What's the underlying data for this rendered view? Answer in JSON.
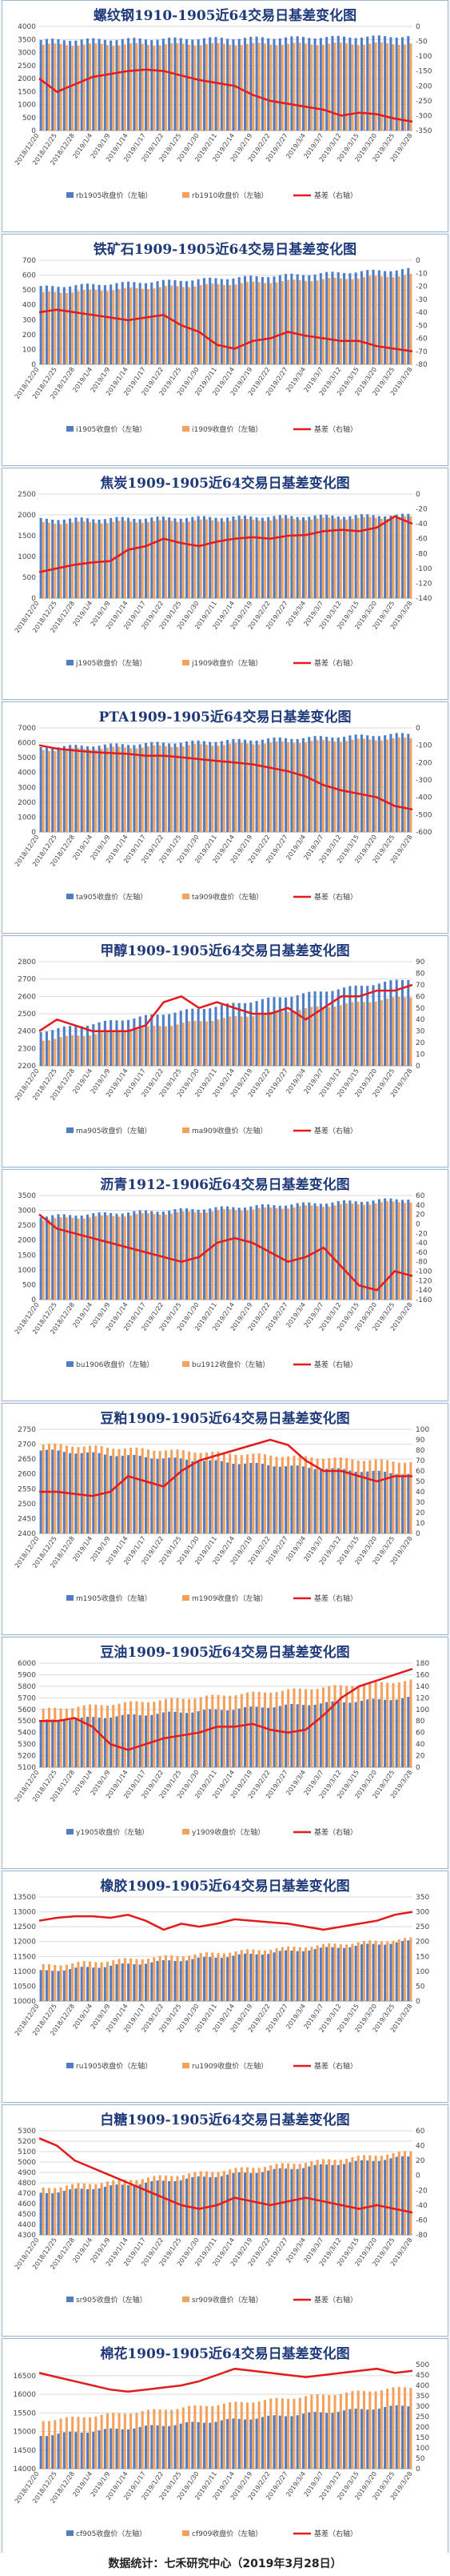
{
  "footer": {
    "text": "数据统计：七禾研究中心（2019年3月28日）"
  },
  "legend": {
    "basis": "基差（右轴）"
  },
  "dates": [
    "2018/12/20",
    "2018/12/25",
    "2018/12/28",
    "2019/1/4",
    "2019/1/9",
    "2019/1/14",
    "2019/1/17",
    "2019/1/22",
    "2019/1/25",
    "2019/1/30",
    "2019/2/11",
    "2019/2/14",
    "2019/2/19",
    "2019/2/22",
    "2019/2/27",
    "2019/3/4",
    "2019/3/7",
    "2019/3/12",
    "2019/3/15",
    "2019/3/20",
    "2019/3/25",
    "2019/3/28"
  ],
  "colors": {
    "bar1": "#4f7ec4",
    "bar2": "#f2a25c",
    "basis": "#e31b1b"
  },
  "chart_data": [
    {
      "type": "bar+line",
      "title": "螺纹钢1910-1905近64交易日基差变化图",
      "series": [
        {
          "name": "rb1905收盘价（左轴）",
          "shape": "flat",
          "start": 3480,
          "end": 3620
        },
        {
          "name": "rb1910收盘价（左轴）",
          "shape": "flat",
          "start": 3300,
          "end": 3340
        },
        {
          "name": "基差（右轴）",
          "values": [
            -175,
            -220,
            -195,
            -170,
            -160,
            -150,
            -145,
            -150,
            -165,
            -180,
            -190,
            -200,
            -230,
            -250,
            -260,
            -270,
            -280,
            -300,
            -290,
            -295,
            -310,
            -320
          ]
        }
      ],
      "ylim_left": [
        0,
        4000
      ],
      "yticks_left": [
        0,
        500,
        1000,
        1500,
        2000,
        2500,
        3000,
        3500,
        4000
      ],
      "ylim_right": [
        -350,
        0
      ],
      "yticks_right": [
        -350,
        -300,
        -250,
        -200,
        -150,
        -100,
        -50,
        0
      ]
    },
    {
      "type": "bar+line",
      "title": "铁矿石1909-1905近64交易日基差变化图",
      "series": [
        {
          "name": "i1905收盘价（左轴）",
          "shape": "rise",
          "start": 520,
          "end": 640
        },
        {
          "name": "i1909收盘价（左轴）",
          "shape": "rise",
          "start": 480,
          "end": 600
        },
        {
          "name": "基差（右轴）",
          "values": [
            -40,
            -38,
            -40,
            -42,
            -44,
            -46,
            -44,
            -42,
            -50,
            -55,
            -65,
            -68,
            -62,
            -60,
            -55,
            -58,
            -60,
            -62,
            -62,
            -66,
            -68,
            -70
          ]
        }
      ],
      "ylim_left": [
        0,
        700
      ],
      "yticks_left": [
        0,
        100,
        200,
        300,
        400,
        500,
        600,
        700
      ],
      "ylim_right": [
        -80,
        0
      ],
      "yticks_right": [
        -80,
        -70,
        -60,
        -50,
        -40,
        -30,
        -20,
        -10,
        0
      ]
    },
    {
      "type": "bar+line",
      "title": "焦炭1909-1905近64交易日基差变化图",
      "series": [
        {
          "name": "j1905收盘价（左轴）",
          "shape": "flat",
          "start": 1900,
          "end": 2000
        },
        {
          "name": "j1909收盘价（左轴）",
          "shape": "flat",
          "start": 1800,
          "end": 1940
        },
        {
          "name": "基差（右轴）",
          "values": [
            -105,
            -100,
            -95,
            -92,
            -90,
            -75,
            -70,
            -60,
            -66,
            -70,
            -64,
            -60,
            -58,
            -60,
            -56,
            -55,
            -50,
            -48,
            -50,
            -45,
            -30,
            -40
          ]
        }
      ],
      "ylim_left": [
        0,
        2500
      ],
      "yticks_left": [
        0,
        500,
        1000,
        1500,
        2000,
        2500
      ],
      "ylim_right": [
        -140,
        0
      ],
      "yticks_right": [
        -140,
        -120,
        -100,
        -80,
        -60,
        -40,
        -20,
        0
      ]
    },
    {
      "type": "bar+line",
      "title": "PTA1909-1905近64交易日基差变化图",
      "series": [
        {
          "name": "ta905收盘价（左轴）",
          "shape": "rise",
          "start": 5700,
          "end": 6600
        },
        {
          "name": "ta909收盘价（左轴）",
          "shape": "rise",
          "start": 5500,
          "end": 6300
        },
        {
          "name": "基差（右轴）",
          "values": [
            -100,
            -120,
            -130,
            -140,
            -145,
            -150,
            -160,
            -160,
            -170,
            -180,
            -190,
            -200,
            -210,
            -230,
            -250,
            -280,
            -330,
            -360,
            -380,
            -400,
            -450,
            -470
          ]
        }
      ],
      "ylim_left": [
        0,
        7000
      ],
      "yticks_left": [
        0,
        1000,
        2000,
        3000,
        4000,
        5000,
        6000,
        7000
      ],
      "ylim_right": [
        -600,
        0
      ],
      "yticks_right": [
        -600,
        -500,
        -400,
        -300,
        -200,
        -100,
        0
      ]
    },
    {
      "type": "bar+line",
      "title": "甲醇1909-1905近64交易日基差变化图",
      "series": [
        {
          "name": "ma905收盘价（左轴）",
          "shape": "rise",
          "start": 2400,
          "end": 2700
        },
        {
          "name": "ma909收盘价（左轴）",
          "shape": "rise",
          "start": 2350,
          "end": 2600
        },
        {
          "name": "基差（右轴）",
          "values": [
            30,
            40,
            35,
            30,
            30,
            30,
            35,
            55,
            60,
            50,
            55,
            50,
            45,
            45,
            50,
            40,
            50,
            60,
            60,
            65,
            65,
            70
          ]
        }
      ],
      "ylim_left": [
        2200,
        2800
      ],
      "yticks_left": [
        2200,
        2300,
        2400,
        2500,
        2600,
        2700,
        2800
      ],
      "ylim_right": [
        0,
        90
      ],
      "yticks_right": [
        0,
        10,
        20,
        30,
        40,
        50,
        60,
        70,
        80,
        90
      ]
    },
    {
      "type": "bar+line",
      "title": "沥青1912-1906近64交易日基差变化图",
      "series": [
        {
          "name": "bu1906收盘价（左轴）",
          "shape": "rise",
          "start": 2800,
          "end": 3400
        },
        {
          "name": "bu1912收盘价（左轴）",
          "shape": "rise",
          "start": 2700,
          "end": 3300
        },
        {
          "name": "基差（右轴）",
          "values": [
            20,
            -10,
            -20,
            -30,
            -40,
            -50,
            -60,
            -70,
            -80,
            -70,
            -40,
            -30,
            -40,
            -60,
            -80,
            -70,
            -50,
            -90,
            -130,
            -140,
            -100,
            -110
          ]
        }
      ],
      "ylim_left": [
        0,
        3500
      ],
      "yticks_left": [
        0,
        500,
        1000,
        1500,
        2000,
        2500,
        3000,
        3500
      ],
      "ylim_right": [
        -160,
        60
      ],
      "yticks_right": [
        -160,
        -140,
        -120,
        -100,
        -80,
        -60,
        -40,
        -20,
        0,
        20,
        40,
        60
      ]
    },
    {
      "type": "bar+line",
      "title": "豆粕1909-1905近64交易日基差变化图",
      "series": [
        {
          "name": "m1905收盘价（左轴）",
          "shape": "fall",
          "start": 2680,
          "end": 2600
        },
        {
          "name": "m1909收盘价（左轴）",
          "shape": "fall",
          "start": 2700,
          "end": 2640
        },
        {
          "name": "基差（右轴）",
          "values": [
            40,
            40,
            38,
            36,
            40,
            55,
            50,
            45,
            60,
            70,
            75,
            80,
            85,
            90,
            85,
            70,
            60,
            60,
            55,
            50,
            55,
            55
          ]
        }
      ],
      "ylim_left": [
        2400,
        2750
      ],
      "yticks_left": [
        2400,
        2450,
        2500,
        2550,
        2600,
        2650,
        2700,
        2750
      ],
      "ylim_right": [
        0,
        100
      ],
      "yticks_right": [
        0,
        10,
        20,
        30,
        40,
        50,
        60,
        70,
        80,
        90,
        100
      ]
    },
    {
      "type": "bar+line",
      "title": "豆油1909-1905近64交易日基差变化图",
      "series": [
        {
          "name": "y1905收盘价（左轴）",
          "shape": "rise",
          "start": 5500,
          "end": 5700
        },
        {
          "name": "y1909收盘价（左轴）",
          "shape": "rise",
          "start": 5600,
          "end": 5850
        },
        {
          "name": "基差（右轴）",
          "values": [
            80,
            80,
            85,
            70,
            40,
            30,
            40,
            50,
            55,
            60,
            70,
            70,
            75,
            65,
            60,
            65,
            90,
            120,
            140,
            150,
            160,
            170
          ]
        }
      ],
      "ylim_left": [
        5100,
        6000
      ],
      "yticks_left": [
        5100,
        5200,
        5300,
        5400,
        5500,
        5600,
        5700,
        5800,
        5900,
        6000
      ],
      "ylim_right": [
        0,
        180
      ],
      "yticks_right": [
        0,
        20,
        40,
        60,
        80,
        100,
        120,
        140,
        160,
        180
      ]
    },
    {
      "type": "bar+line",
      "title": "橡胶1909-1905近64交易日基差变化图",
      "series": [
        {
          "name": "ru1905收盘价（左轴）",
          "shape": "rise",
          "start": 11000,
          "end": 12000
        },
        {
          "name": "ru1909收盘价（左轴）",
          "shape": "rise",
          "start": 11200,
          "end": 12100
        },
        {
          "name": "基差（右轴）",
          "values": [
            270,
            280,
            285,
            285,
            280,
            290,
            270,
            240,
            260,
            250,
            260,
            275,
            270,
            265,
            260,
            250,
            240,
            250,
            260,
            270,
            290,
            300
          ]
        }
      ],
      "ylim_left": [
        10000,
        13500
      ],
      "yticks_left": [
        10000,
        10500,
        11000,
        11500,
        12000,
        12500,
        13000,
        13500
      ],
      "ylim_right": [
        0,
        350
      ],
      "yticks_right": [
        0,
        50,
        100,
        150,
        200,
        250,
        300,
        350
      ]
    },
    {
      "type": "bar+line",
      "title": "白糖1909-1905近64交易日基差变化图",
      "series": [
        {
          "name": "sr905收盘价（左轴）",
          "shape": "rise",
          "start": 4700,
          "end": 5050
        },
        {
          "name": "sr909收盘价（左轴）",
          "shape": "rise",
          "start": 4750,
          "end": 5100
        },
        {
          "name": "基差（右轴）",
          "values": [
            50,
            40,
            20,
            10,
            0,
            -10,
            -20,
            -30,
            -40,
            -45,
            -40,
            -30,
            -35,
            -40,
            -35,
            -30,
            -35,
            -40,
            -45,
            -40,
            -45,
            -50
          ]
        }
      ],
      "ylim_left": [
        4300,
        5300
      ],
      "yticks_left": [
        4300,
        4400,
        4500,
        4600,
        4700,
        4800,
        4900,
        5000,
        5100,
        5200,
        5300
      ],
      "ylim_right": [
        -80,
        60
      ],
      "yticks_right": [
        -80,
        -60,
        -40,
        -20,
        0,
        20,
        40,
        60
      ]
    },
    {
      "type": "bar+line",
      "title": "棉花1909-1905近64交易日基差变化图",
      "series": [
        {
          "name": "cf905收盘价（左轴）",
          "shape": "rise",
          "start": 14900,
          "end": 15700
        },
        {
          "name": "cf909收盘价（左轴）",
          "shape": "rise",
          "start": 15300,
          "end": 16200
        },
        {
          "name": "基差（右轴）",
          "values": [
            460,
            440,
            420,
            400,
            380,
            370,
            380,
            390,
            400,
            420,
            450,
            480,
            470,
            460,
            450,
            440,
            450,
            460,
            470,
            480,
            460,
            470
          ]
        }
      ],
      "ylim_left": [
        14000,
        16800
      ],
      "yticks_left": [
        14000,
        14500,
        15000,
        15500,
        16000,
        16500
      ],
      "ylim_right": [
        0,
        500
      ],
      "yticks_right": [
        0,
        50,
        100,
        150,
        200,
        250,
        300,
        350,
        400,
        450,
        500
      ]
    }
  ]
}
